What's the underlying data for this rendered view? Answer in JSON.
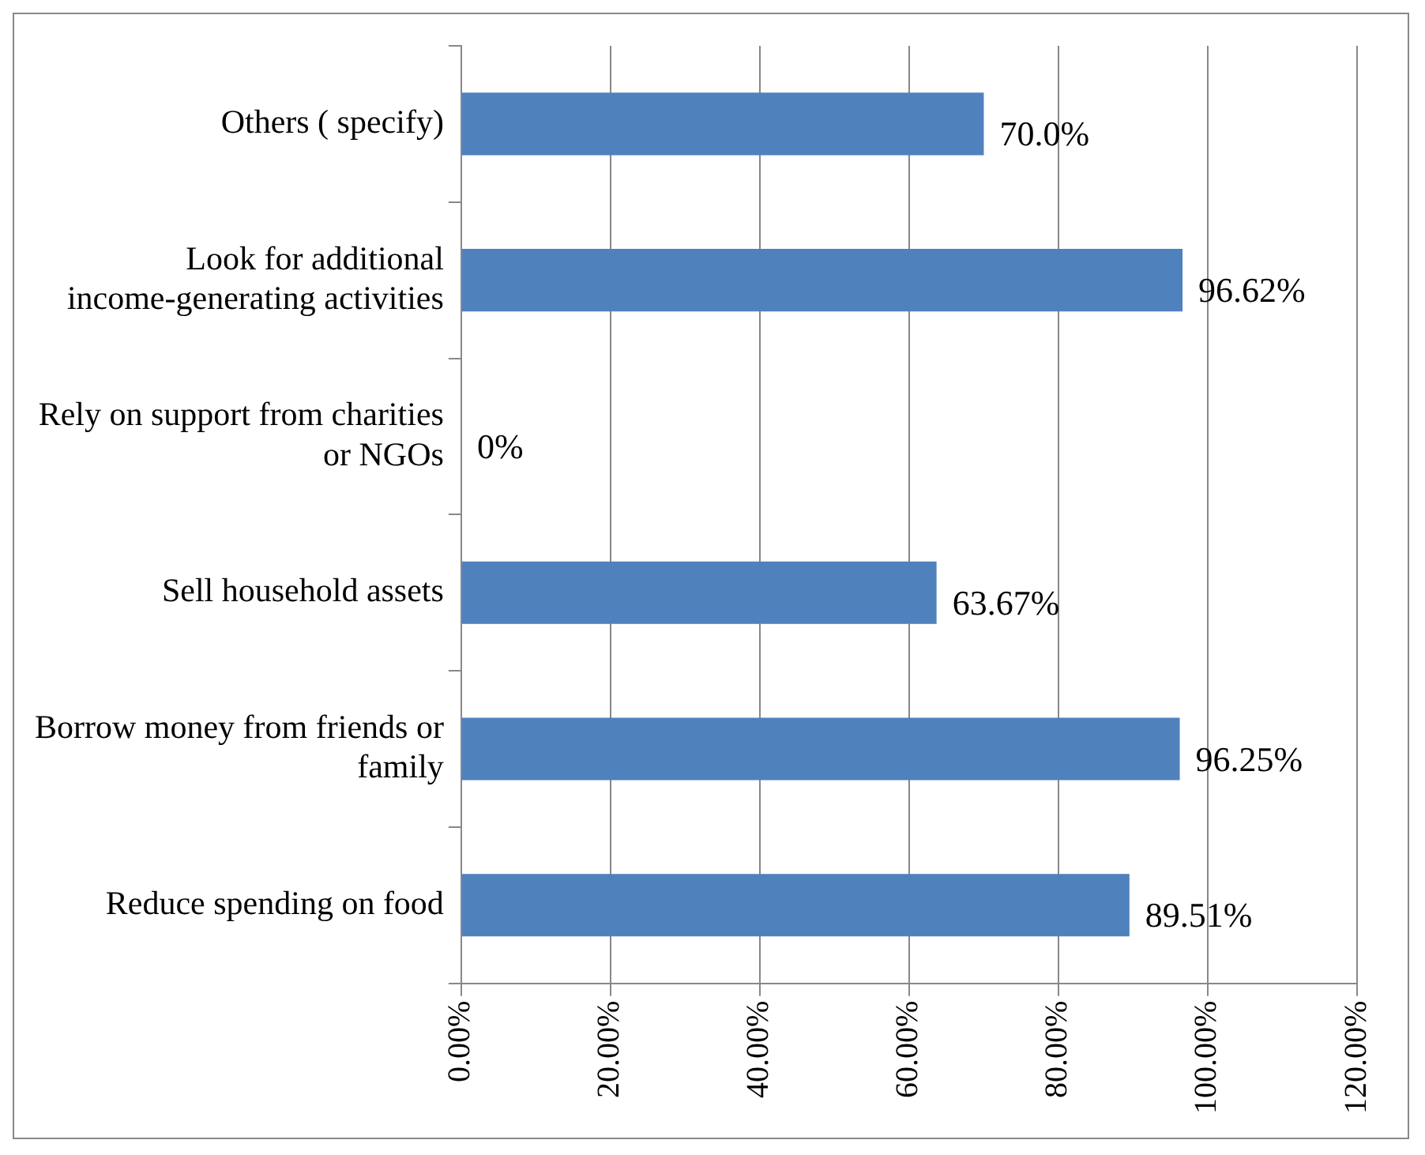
{
  "chart_data": {
    "type": "bar",
    "orientation": "horizontal",
    "categories": [
      "Others ( specify)",
      "Look for additional income-generating activities",
      "Rely on support from charities or NGOs",
      "Sell household assets",
      "Borrow money from friends or family",
      "Reduce spending on food"
    ],
    "values": [
      70.0,
      96.62,
      0,
      63.67,
      96.25,
      89.51
    ],
    "value_labels": [
      "70.0%",
      "96.62%",
      "0%",
      "63.67%",
      "96.25%",
      "89.51%"
    ],
    "color": "#4f81bd",
    "xlim": [
      0,
      120
    ],
    "xticks": [
      {
        "value": 0,
        "label": "0.00%"
      },
      {
        "value": 20,
        "label": "20.00%"
      },
      {
        "value": 40,
        "label": "40.00%"
      },
      {
        "value": 60,
        "label": "60.00%"
      },
      {
        "value": 80,
        "label": "80.00%"
      },
      {
        "value": 100,
        "label": "100.00%"
      },
      {
        "value": 120,
        "label": "120.00%"
      }
    ],
    "grid": "x",
    "legend": false
  }
}
